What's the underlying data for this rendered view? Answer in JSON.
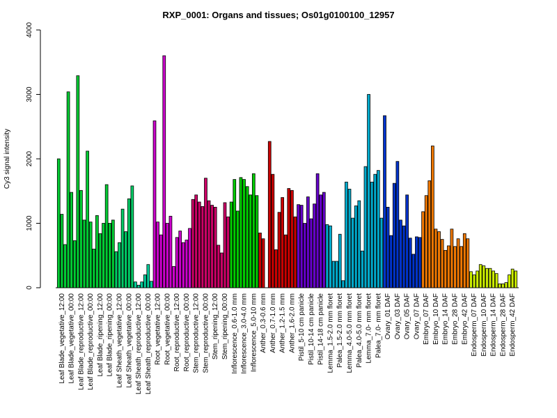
{
  "chart_data": {
    "type": "bar",
    "title": "RXP_0001: Organs and tissues; Os01g0100100_12957",
    "xlabel": "",
    "ylabel": "Cy3 signal intensity",
    "ylim": [
      0,
      4000
    ],
    "yticks": [
      0,
      1000,
      2000,
      3000,
      4000
    ],
    "grid": false,
    "legend": "none",
    "groups": [
      {
        "label": "Leaf Blade_vegetative_12:00",
        "color": "#00CC33",
        "values": [
          2000,
          1140,
          670
        ]
      },
      {
        "label": "Leaf Blade_vegetative_00:00",
        "color": "#00CC33",
        "values": [
          3040,
          1480,
          730
        ]
      },
      {
        "label": "Leaf Blade_reproductive_12:00",
        "color": "#00CC33",
        "values": [
          3290,
          1510,
          1050
        ]
      },
      {
        "label": "Leaf Blade_reproductive_00:00",
        "color": "#00CC33",
        "values": [
          2120,
          1020,
          600
        ]
      },
      {
        "label": "Leaf Blade_ripening_12:00",
        "color": "#00CC33",
        "values": [
          1120,
          840,
          1000
        ]
      },
      {
        "label": "Leaf Blade_ripening_00:00",
        "color": "#00CC33",
        "values": [
          1600,
          1000,
          1050
        ]
      },
      {
        "label": "Leaf Sheath_vegetative_12:00",
        "color": "#00CC66",
        "values": [
          560,
          700,
          1220
        ]
      },
      {
        "label": "Leaf Sheath_vegetative_00:00",
        "color": "#00CC66",
        "values": [
          870,
          1380,
          1580
        ]
      },
      {
        "label": "Leaf Sheath_reproductive_12:00",
        "color": "#00CC99",
        "values": [
          90,
          40,
          90
        ]
      },
      {
        "label": "Leaf Sheath_reproductive_00:00",
        "color": "#00CC99",
        "values": [
          200,
          360,
          100
        ]
      },
      {
        "label": "Root_vegetative_12:00",
        "color": "#CC00CC",
        "values": [
          2590,
          1020,
          820
        ]
      },
      {
        "label": "Root_vegetative_00:00",
        "color": "#CC00CC",
        "values": [
          3600,
          1000,
          1110
        ]
      },
      {
        "label": "Root_reproductive_12:00",
        "color": "#CC00CC",
        "values": [
          330,
          780,
          880
        ]
      },
      {
        "label": "Root_reproductive_00:00",
        "color": "#CC00CC",
        "values": [
          700,
          740,
          920
        ]
      },
      {
        "label": "Stem_reproductive_12:00",
        "color": "#CC0066",
        "values": [
          1370,
          1440,
          1330
        ]
      },
      {
        "label": "Stem_reproductive_00:00",
        "color": "#CC0066",
        "values": [
          1260,
          1700,
          1350
        ]
      },
      {
        "label": "Stem_ripening_12:00",
        "color": "#CC0066",
        "values": [
          1280,
          1250,
          660
        ]
      },
      {
        "label": "Stem_ripening_00:00",
        "color": "#CC0066",
        "values": [
          540,
          1320,
          1100
        ]
      },
      {
        "label": "Inflorescence_0.6-1.0 mm",
        "color": "#00CC00",
        "values": [
          1330,
          1680,
          1190
        ]
      },
      {
        "label": "Inflorescence_3.0-4.0 mm",
        "color": "#00CC00",
        "values": [
          1710,
          1680,
          1570
        ]
      },
      {
        "label": "Inflorescence_5.0-10 mm",
        "color": "#00CC00",
        "values": [
          1440,
          1770,
          1430
        ]
      },
      {
        "label": "Anther_0.3-0.6 mm",
        "color": "#CC0000",
        "values": [
          850,
          760
        ]
      },
      {
        "label": "Anther_0.7-1.0 mm",
        "color": "#CC0000",
        "values": [
          2270,
          1760,
          590
        ]
      },
      {
        "label": "Anther_1.2-1.5 mm",
        "color": "#CC0000",
        "values": [
          1170,
          1400,
          820
        ]
      },
      {
        "label": "Anther_1.6-2.0 mm",
        "color": "#CC0000",
        "values": [
          1540,
          1510,
          1100
        ]
      },
      {
        "label": "Pistil_5-10 cm panicle",
        "color": "#6600CC",
        "values": [
          1290,
          1280,
          1000
        ]
      },
      {
        "label": "Pistil_10-14 cm panicle",
        "color": "#6600CC",
        "values": [
          1410,
          1070,
          1300
        ]
      },
      {
        "label": "Pistil_14-18 cm panicle",
        "color": "#6600CC",
        "values": [
          1770,
          1440,
          1480
        ]
      },
      {
        "label": "Lemma_1.5-2.0 mm floret",
        "color": "#00AACC",
        "values": [
          980,
          960,
          410
        ]
      },
      {
        "label": "Palea_1.5-2.0 mm floret",
        "color": "#00AACC",
        "values": [
          410,
          830,
          110
        ]
      },
      {
        "label": "Lemma_4.0-5.0 mm floret",
        "color": "#00AACC",
        "values": [
          1640,
          1530,
          1080
        ]
      },
      {
        "label": "Palea_4.0-5.0 mm floret",
        "color": "#00AACC",
        "values": [
          1270,
          1350,
          570
        ]
      },
      {
        "label": "Lemma_7.0- mm floret",
        "color": "#00AACC",
        "values": [
          1880,
          3000,
          1640
        ]
      },
      {
        "label": "Palea_7.0- mm floret",
        "color": "#00AACC",
        "values": [
          1760,
          1820,
          1080
        ]
      },
      {
        "label": "Ovary_01 DAF",
        "color": "#0033CC",
        "values": [
          2670,
          1250,
          810
        ]
      },
      {
        "label": "Ovary_03 DAF",
        "color": "#0033CC",
        "values": [
          1620,
          1960,
          1050
        ]
      },
      {
        "label": "Ovary_05 DAF",
        "color": "#0033CC",
        "values": [
          960,
          1440,
          770
        ]
      },
      {
        "label": "Ovary_07 DAF",
        "color": "#0033CC",
        "values": [
          520,
          790,
          780
        ]
      },
      {
        "label": "Embryo_07 DAF",
        "color": "#EE7700",
        "values": [
          1180,
          1430,
          1660
        ]
      },
      {
        "label": "Embryo_10 DAF",
        "color": "#EE7700",
        "values": [
          2200,
          910,
          870
        ]
      },
      {
        "label": "Embryo_14 DAF",
        "color": "#EE7700",
        "values": [
          750,
          580,
          650
        ]
      },
      {
        "label": "Embryo_28 DAF",
        "color": "#EE7700",
        "values": [
          910,
          640,
          760
        ]
      },
      {
        "label": "Embryo_42 DAF",
        "color": "#EE7700",
        "values": [
          640,
          840,
          760
        ]
      },
      {
        "label": "Endosperm_07 DAF",
        "color": "#CCEE00",
        "values": [
          250,
          200,
          260
        ]
      },
      {
        "label": "Endosperm_10 DAF",
        "color": "#CCEE00",
        "values": [
          360,
          340,
          300
        ]
      },
      {
        "label": "Endosperm_14 DAF",
        "color": "#CCEE00",
        "values": [
          300,
          260,
          220
        ]
      },
      {
        "label": "Endosperm_28 DAF",
        "color": "#CCEE00",
        "values": [
          60,
          60,
          80
        ]
      },
      {
        "label": "Endosperm_42 DAF",
        "color": "#CCEE00",
        "values": [
          200,
          290,
          260
        ]
      }
    ]
  }
}
